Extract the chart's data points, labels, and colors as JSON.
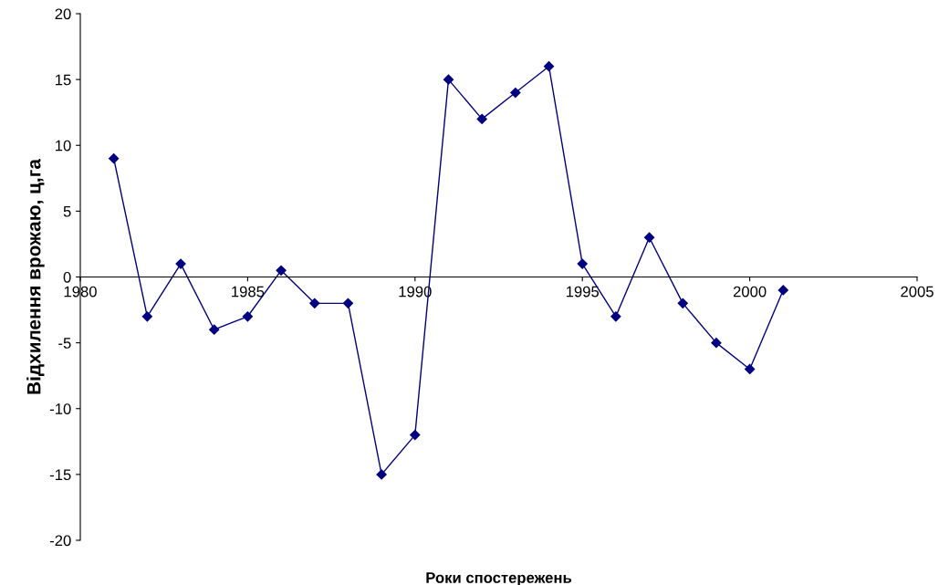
{
  "chart_data": {
    "type": "line",
    "xlabel": "Роки спостережень",
    "ylabel": "Відхилення врожаю, ц,га",
    "x": [
      1981,
      1982,
      1983,
      1984,
      1985,
      1986,
      1987,
      1988,
      1989,
      1990,
      1991,
      1992,
      1993,
      1994,
      1995,
      1996,
      1997,
      1998,
      1999,
      2000,
      2001
    ],
    "series": [
      {
        "color": "#000080",
        "values": [
          9,
          -3,
          1,
          -4,
          -3,
          0.5,
          -2,
          -2,
          -15,
          -12,
          15,
          12,
          14,
          16,
          1,
          -3,
          3,
          -2,
          -5,
          -7,
          -1
        ]
      }
    ],
    "xlim": [
      1980,
      2005
    ],
    "xticks": [
      1980,
      1985,
      1990,
      1995,
      2000,
      2005
    ],
    "ylim": [
      -20,
      20
    ],
    "yticks": [
      -20,
      -15,
      -10,
      -5,
      0,
      5,
      10,
      15,
      20
    ],
    "grid": false,
    "legend": false,
    "marker": "diamond",
    "line_style": "solid"
  }
}
